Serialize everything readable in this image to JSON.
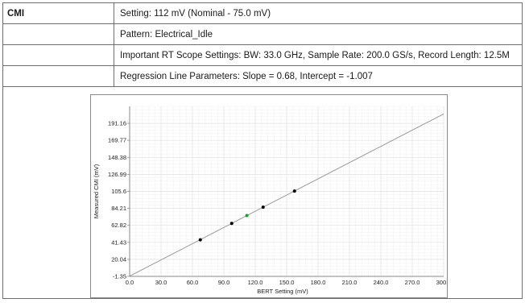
{
  "table": {
    "header_label": "CMI",
    "setting": "Setting: 112 mV (Nominal - 75.0 mV)",
    "pattern": "Pattern: Electrical_Idle",
    "scope_settings": "Important RT Scope Settings: BW: 33.0 GHz, Sample Rate: 200.0 GS/s, Record Length: 12.5M",
    "regression": "Regression Line Parameters: Slope = 0.68, Intercept = -1.007"
  },
  "chart_data": {
    "type": "scatter",
    "title": "",
    "xlabel": "BERT Setting (mV)",
    "ylabel": "Measured CMI (mV)",
    "xlim": [
      0,
      300
    ],
    "ylim": [
      -1.35,
      212.55
    ],
    "x_ticks": [
      "0.0",
      "30.0",
      "60.0",
      "90.0",
      "120.0",
      "150.0",
      "180.0",
      "210.0",
      "240.0",
      "270.0",
      "300.0"
    ],
    "y_ticks": [
      "-1.35",
      "20.04",
      "41.43",
      "62.82",
      "84.21",
      "105.6",
      "126.99",
      "148.38",
      "169.77",
      "191.16"
    ],
    "grid": true,
    "points": [
      {
        "x": 67.5,
        "y": 44.6,
        "color": "#000000"
      },
      {
        "x": 97.5,
        "y": 65.3,
        "color": "#000000"
      },
      {
        "x": 112,
        "y": 75.2,
        "color": "#1a9e2a"
      },
      {
        "x": 127.5,
        "y": 85.7,
        "color": "#000000"
      },
      {
        "x": 157.5,
        "y": 106.0,
        "color": "#000000"
      }
    ],
    "regression_line": {
      "slope": 0.68,
      "intercept": -1.007,
      "color": "#9a9a9a"
    },
    "colors": {
      "grid_major": "#e2e2e2",
      "grid_minor": "#f0f0f0",
      "axis": "#8a8a8a"
    }
  }
}
